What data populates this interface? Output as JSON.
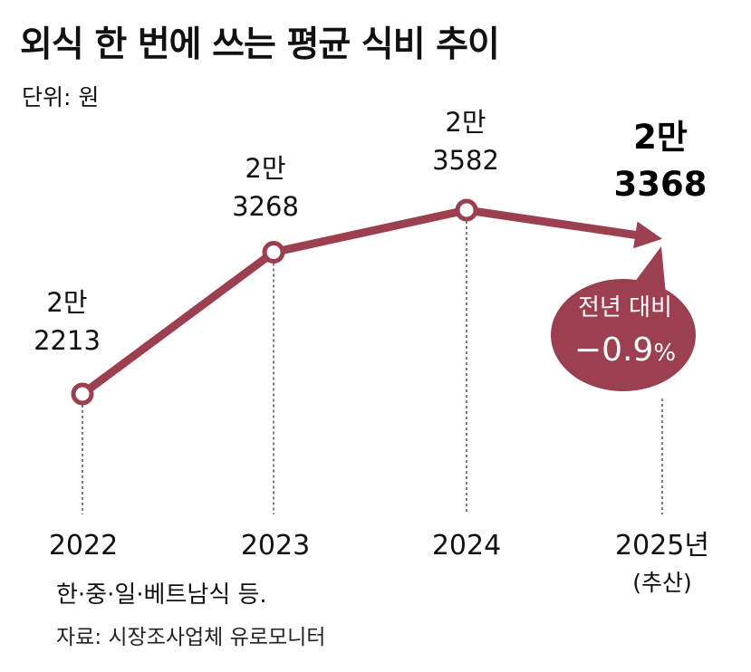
{
  "header": {
    "title": "외식 한 번에 쓰는 평균 식비 추이",
    "unit": "단위: 원"
  },
  "colors": {
    "line": "#9c3f50",
    "bubble": "#9c3f50",
    "marker_fill": "#ffffff",
    "text": "#111111"
  },
  "chart_data": {
    "type": "line",
    "title": "외식 한 번에 쓰는 평균 식비 추이",
    "unit": "단위: 원",
    "categories": [
      "2022",
      "2023",
      "2024",
      "2025년"
    ],
    "category_notes": [
      "",
      "",
      "",
      "(추산)"
    ],
    "values": [
      22213,
      23268,
      23582,
      23368
    ],
    "value_labels": [
      [
        "2만",
        "2213"
      ],
      [
        "2만",
        "3268"
      ],
      [
        "2만",
        "3582"
      ],
      [
        "2만",
        "3368"
      ]
    ],
    "grid": false,
    "legend": "none",
    "annotation": {
      "line1": "전년 대비",
      "line2": "−0.9",
      "suffix": "%"
    }
  },
  "footer": {
    "note": "한·중·일·베트남식 등.",
    "source": "자료: 시장조사업체 유로모니터"
  }
}
